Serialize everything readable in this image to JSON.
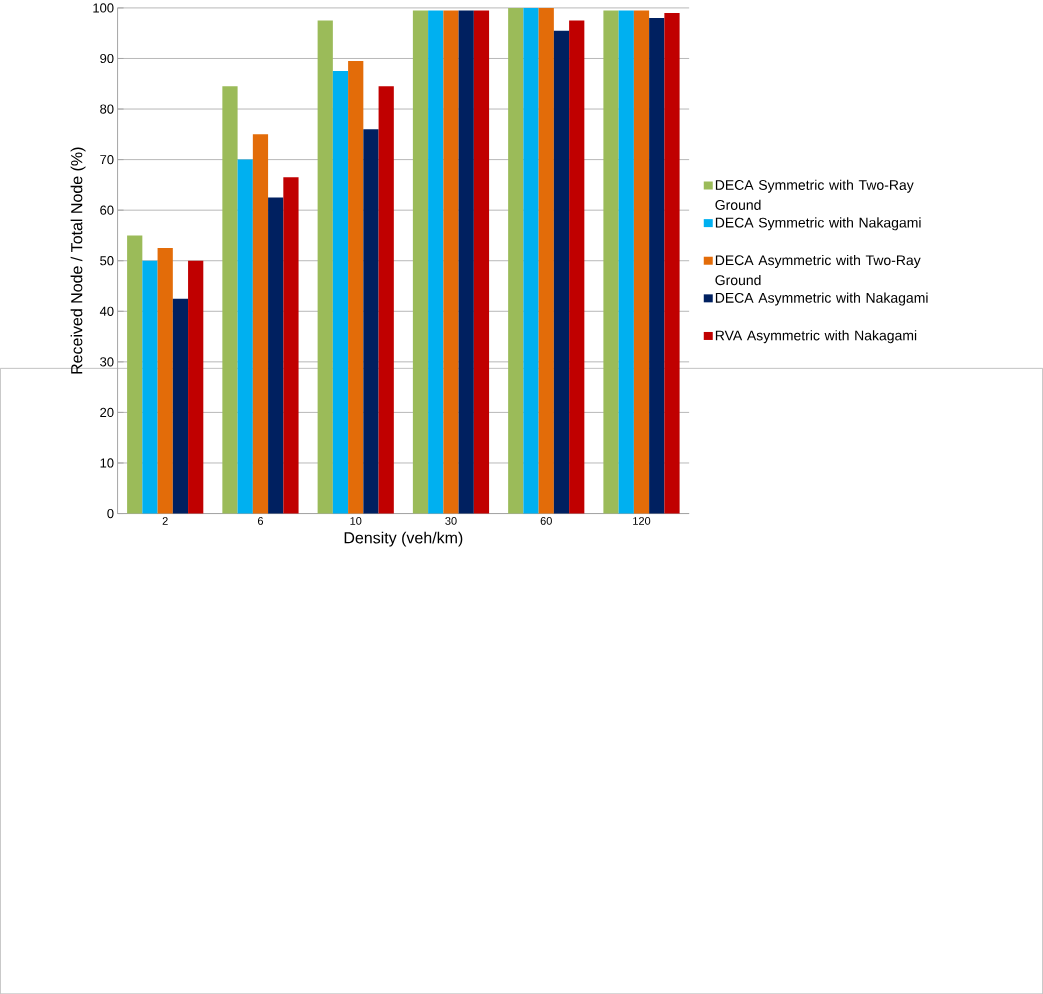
{
  "chart_data": {
    "type": "bar",
    "xlabel": "Density (veh/km)",
    "ylabel": "Received Node / Total Node (%)",
    "categories": [
      "2",
      "6",
      "10",
      "30",
      "60",
      "120"
    ],
    "series": [
      {
        "name": "DECA Symmetric with Two-Ray Ground",
        "color": "#9bbb59",
        "values": [
          55,
          84.5,
          97.5,
          99.5,
          100,
          99.5
        ]
      },
      {
        "name": "DECA Symmetric with Nakagami",
        "color": "#00b0f0",
        "values": [
          50,
          70,
          87.5,
          99.5,
          100,
          99.5
        ]
      },
      {
        "name": "DECA Asymmetric with Two-Ray Ground",
        "color": "#e36c09",
        "values": [
          52.5,
          75,
          89.5,
          99.5,
          100,
          99.5
        ]
      },
      {
        "name": "DECA Asymmetric with Nakagami",
        "color": "#002060",
        "values": [
          42.5,
          62.5,
          76,
          99.5,
          95.5,
          98
        ]
      },
      {
        "name": "RVA Asymmetric with Nakagami",
        "color": "#c00000",
        "values": [
          50,
          66.5,
          84.5,
          99.5,
          97.5,
          99
        ]
      }
    ],
    "ylim": [
      0,
      100
    ],
    "yticks": [
      0,
      10,
      20,
      30,
      40,
      50,
      60,
      70,
      80,
      90,
      100
    ],
    "grid": "y",
    "legend": "right"
  }
}
